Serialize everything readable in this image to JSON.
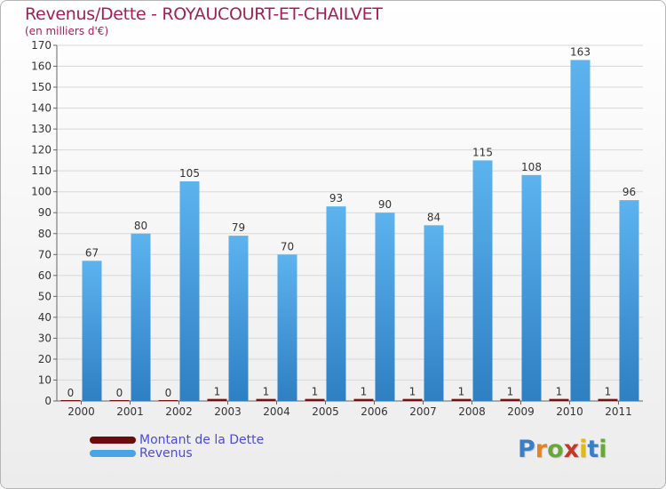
{
  "title": "Revenus/Dette - ROYAUCOURT-ET-CHAILVET",
  "subtitle": "(en milliers d'€)",
  "legend": [
    {
      "label": "Montant de la Dette",
      "color": "#6b0c0c"
    },
    {
      "label": "Revenus",
      "color": "#4aa3e2"
    }
  ],
  "logo": {
    "text": "Proxiti",
    "colors": [
      "#3a7fc4",
      "#e8821e",
      "#6aa73b",
      "#c0392b",
      "#e0b81a",
      "#3a7fc4",
      "#6aa73b"
    ]
  },
  "chart_data": {
    "type": "bar",
    "title": "Revenus/Dette - ROYAUCOURT-ET-CHAILVET",
    "ylabel": "(en milliers d'€)",
    "categories": [
      "2000",
      "2001",
      "2002",
      "2003",
      "2004",
      "2005",
      "2006",
      "2007",
      "2008",
      "2009",
      "2010",
      "2011"
    ],
    "series": [
      {
        "name": "Montant de la Dette",
        "color": "#7a0f0f",
        "values": [
          0,
          0,
          0,
          1,
          1,
          1,
          1,
          1,
          1,
          1,
          1,
          1
        ]
      },
      {
        "name": "Revenus",
        "color": "#4aa3e2",
        "values": [
          67,
          80,
          105,
          79,
          70,
          93,
          90,
          84,
          115,
          108,
          163,
          96
        ]
      }
    ],
    "ylim": [
      0,
      170
    ],
    "yticks": [
      0,
      10,
      20,
      30,
      40,
      50,
      60,
      70,
      80,
      90,
      100,
      110,
      120,
      130,
      140,
      150,
      160,
      170
    ],
    "grid": true,
    "legend_position": "bottom-left"
  }
}
